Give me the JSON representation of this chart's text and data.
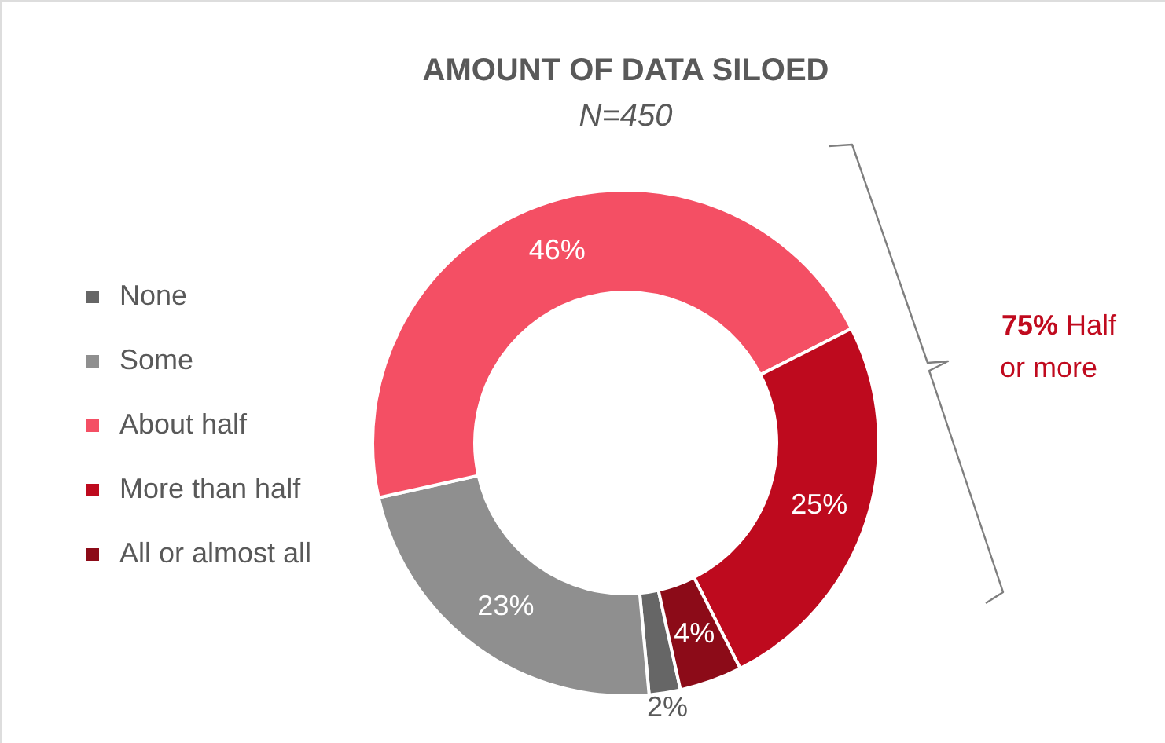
{
  "chart_data": {
    "type": "donut",
    "title": "AMOUNT OF DATA SILOED",
    "subtitle": "N=450",
    "categories": [
      "None",
      "Some",
      "About half",
      "More than half",
      "All or almost all"
    ],
    "values": [
      2,
      23,
      46,
      25,
      4
    ],
    "colors": [
      "#666666",
      "#8f8f8f",
      "#f44f64",
      "#be0a1e",
      "#8c0b18"
    ],
    "value_labels": [
      "2%",
      "23%",
      "46%",
      "25%",
      "4%"
    ],
    "legend": "left",
    "annotations": [
      "75% Half or more"
    ]
  }
}
